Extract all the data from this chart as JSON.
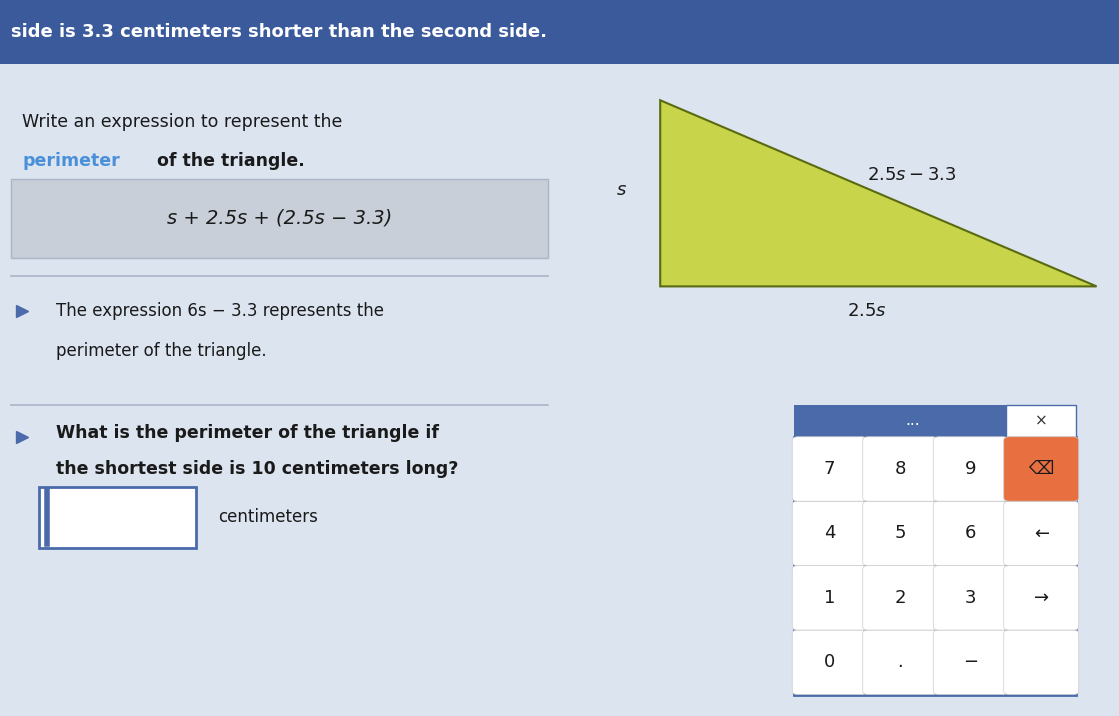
{
  "bg_color": "#d0d8e8",
  "header_color": "#3a5a9c",
  "header_text": "side is 3.3 centimeters shorter than the second side.",
  "header_text_color": "#ffffff",
  "content_bg": "#dce4f0",
  "section1_label": "Write an expression to represent the",
  "perimeter_word_color": "#4a90d9",
  "formula_box_bg": "#c8cfd8",
  "formula_text": "s + 2.5s + (2.5s − 3.3)",
  "section2_text1": "The expression 6s − 3.3 represents the",
  "section2_text2": "perimeter of the triangle.",
  "section3_label1": "What is the perimeter of the triangle if",
  "section3_label2": "the shortest side is 10 centimeters long?",
  "answer_box_label": "centimeters",
  "triangle_fill": "#c8d44a",
  "triangle_stroke": "#5a6a10",
  "numpad_bg": "#4a6aaa",
  "numpad_cell_bg": "#ffffff",
  "numpad_keys": [
    [
      "7",
      "8",
      "9",
      "⌫"
    ],
    [
      "4",
      "5",
      "6",
      "←"
    ],
    [
      "1",
      "2",
      "3",
      "→"
    ],
    [
      "0",
      ".",
      "−",
      ""
    ]
  ],
  "speaker_icon_color": "#4a6aaa"
}
